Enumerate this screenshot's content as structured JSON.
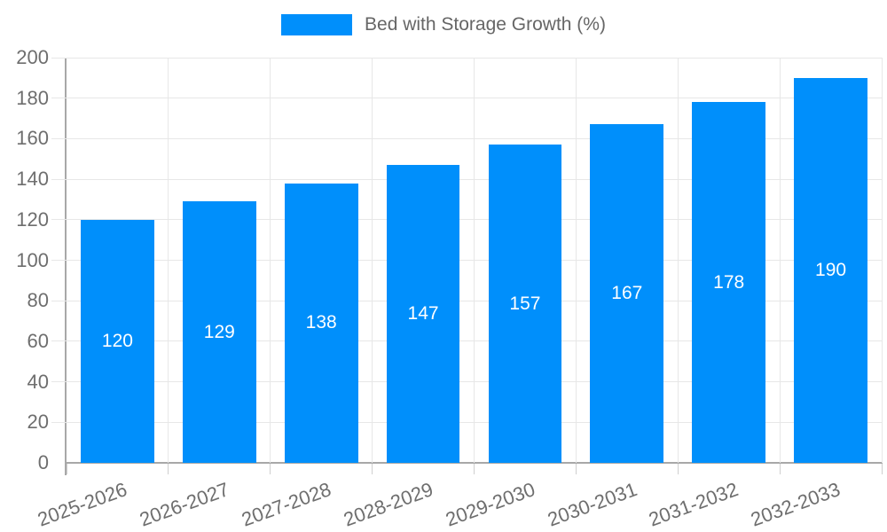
{
  "colors": {
    "background": "#ffffff",
    "bar": "#008FFB",
    "bar_label": "#ffffff",
    "legend_text": "#666666",
    "axis_text": "#6e6e6e",
    "axis_line": "#a8a8a8",
    "axis_tick": "#cfcfcf",
    "grid_line": "#e7e7e7"
  },
  "legend": {
    "label": "Bed with Storage Growth (%)"
  },
  "chart_data": {
    "type": "bar",
    "title": "Bed with Storage Growth (%)",
    "categories": [
      "2025-2026",
      "2026-2027",
      "2027-2028",
      "2028-2029",
      "2029-2030",
      "2030-2031",
      "2031-2032",
      "2032-2033"
    ],
    "values": [
      120,
      129,
      138,
      147,
      157,
      167,
      178,
      190
    ],
    "series": [
      {
        "name": "Bed with Storage Growth (%)",
        "values": [
          120,
          129,
          138,
          147,
          157,
          167,
          178,
          190
        ]
      }
    ],
    "xlabel": "",
    "ylabel": "",
    "ylim": [
      0,
      200
    ],
    "ytick_step": 20,
    "yticks": [
      0,
      20,
      40,
      60,
      80,
      100,
      120,
      140,
      160,
      180,
      200
    ],
    "grid": "both",
    "legend_position": "top",
    "bar_value_labels": "inside-center",
    "x_label_rotation_deg": -20
  }
}
